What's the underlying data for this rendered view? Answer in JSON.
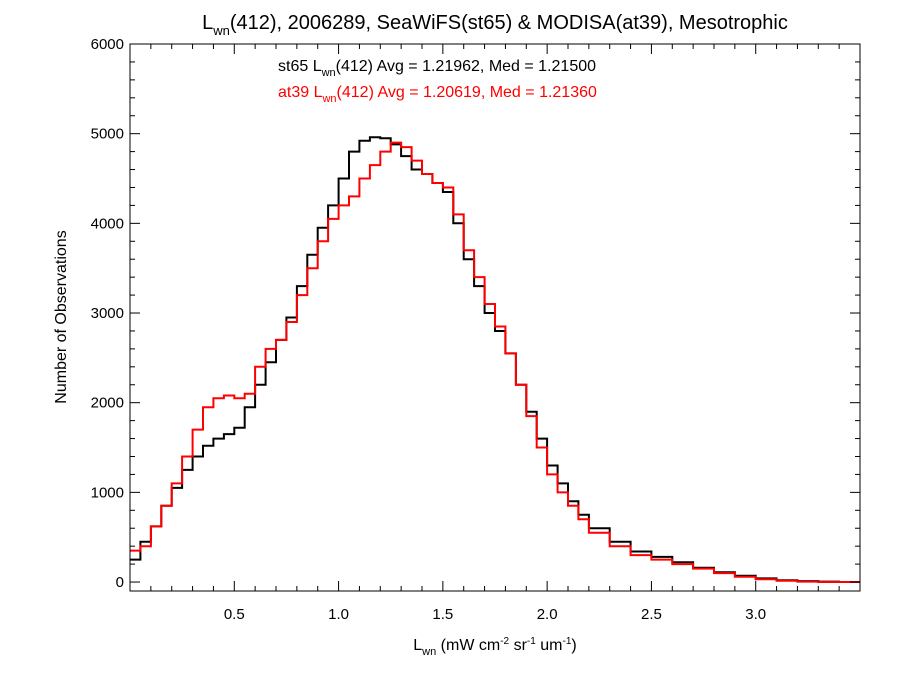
{
  "chart_data": {
    "type": "line",
    "step": true,
    "title": {
      "base": "L",
      "sub": "wn",
      "rest": "(412), 2006289, SeaWiFS(st65) & MODISA(at39), Mesotrophic"
    },
    "xlabel": {
      "base": "L",
      "sub": "wn",
      "p1": " (mW cm",
      "sup1": "-2",
      "p2": " sr",
      "sup2": "-1",
      "p3": " um",
      "sup3": "-1",
      "p4": ")"
    },
    "ylabel": "Number of Observations",
    "xlim": [
      0.0,
      3.5
    ],
    "ylim": [
      -100,
      6000
    ],
    "x_ticks": [
      0.5,
      1.0,
      1.5,
      2.0,
      2.5,
      3.0
    ],
    "x_tick_labels": [
      "0.5",
      "1.0",
      "1.5",
      "2.0",
      "2.5",
      "3.0"
    ],
    "y_ticks": [
      0,
      1000,
      2000,
      3000,
      4000,
      5000,
      6000
    ],
    "y_tick_labels": [
      "0",
      "1000",
      "2000",
      "3000",
      "4000",
      "5000",
      "6000"
    ],
    "series": [
      {
        "name": "st65",
        "color": "#000000",
        "stat_label": {
          "prefix": "st65 L",
          "sub": "wn",
          "rest": "(412) Avg = 1.21962, Med = 1.21500"
        },
        "x": [
          0.0,
          0.05,
          0.1,
          0.15,
          0.2,
          0.25,
          0.3,
          0.35,
          0.4,
          0.45,
          0.5,
          0.55,
          0.6,
          0.65,
          0.7,
          0.75,
          0.8,
          0.85,
          0.9,
          0.95,
          1.0,
          1.05,
          1.1,
          1.15,
          1.2,
          1.25,
          1.3,
          1.35,
          1.4,
          1.45,
          1.5,
          1.55,
          1.6,
          1.65,
          1.7,
          1.75,
          1.8,
          1.85,
          1.9,
          1.95,
          2.0,
          2.05,
          2.1,
          2.15,
          2.2,
          2.3,
          2.4,
          2.5,
          2.6,
          2.7,
          2.8,
          2.9,
          3.0,
          3.1,
          3.2,
          3.3,
          3.4,
          3.5
        ],
        "y": [
          250,
          450,
          620,
          850,
          1050,
          1250,
          1400,
          1520,
          1600,
          1650,
          1720,
          1950,
          2200,
          2450,
          2700,
          2950,
          3300,
          3650,
          3950,
          4200,
          4500,
          4800,
          4920,
          4960,
          4950,
          4880,
          4750,
          4600,
          4550,
          4450,
          4350,
          4000,
          3600,
          3300,
          3000,
          2800,
          2550,
          2200,
          1900,
          1600,
          1300,
          1100,
          900,
          750,
          600,
          450,
          340,
          280,
          220,
          160,
          110,
          70,
          40,
          20,
          10,
          5,
          0,
          0
        ]
      },
      {
        "name": "at39",
        "color": "#ff0000",
        "stat_label": {
          "prefix": "at39 L",
          "sub": "wn",
          "rest": "(412) Avg = 1.20619, Med = 1.21360"
        },
        "x": [
          0.0,
          0.05,
          0.1,
          0.15,
          0.2,
          0.25,
          0.3,
          0.35,
          0.4,
          0.45,
          0.5,
          0.55,
          0.6,
          0.65,
          0.7,
          0.75,
          0.8,
          0.85,
          0.9,
          0.95,
          1.0,
          1.05,
          1.1,
          1.15,
          1.2,
          1.25,
          1.3,
          1.35,
          1.4,
          1.45,
          1.5,
          1.55,
          1.6,
          1.65,
          1.7,
          1.75,
          1.8,
          1.85,
          1.9,
          1.95,
          2.0,
          2.05,
          2.1,
          2.15,
          2.2,
          2.3,
          2.4,
          2.5,
          2.6,
          2.7,
          2.8,
          2.9,
          3.0,
          3.1,
          3.2,
          3.3,
          3.4,
          3.5
        ],
        "y": [
          350,
          400,
          620,
          850,
          1100,
          1400,
          1700,
          1950,
          2050,
          2080,
          2050,
          2100,
          2400,
          2600,
          2700,
          2900,
          3200,
          3500,
          3800,
          4050,
          4200,
          4300,
          4500,
          4650,
          4800,
          4900,
          4850,
          4700,
          4550,
          4450,
          4400,
          4100,
          3700,
          3400,
          3100,
          2850,
          2550,
          2200,
          1850,
          1500,
          1200,
          1000,
          850,
          700,
          550,
          400,
          300,
          250,
          200,
          150,
          100,
          60,
          30,
          15,
          5,
          0,
          0,
          0
        ]
      }
    ]
  }
}
